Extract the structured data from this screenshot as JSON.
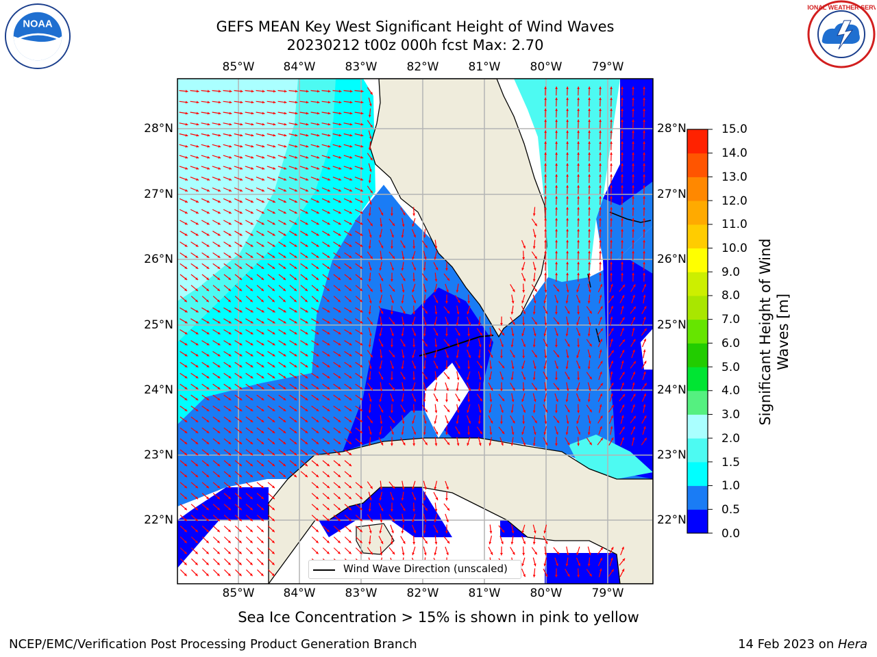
{
  "title_line1": "GEFS MEAN Key West Significant Height of Wind Waves",
  "title_line2": "20230212 t00z 000h fcst   Max: 2.70",
  "logos": {
    "left": "noaa-logo",
    "right": "national-weather-service-logo",
    "left_text": "NOAA",
    "right_text": "NATIONAL WEATHER SERVICE"
  },
  "map": {
    "lon_ticks": [
      "85°W",
      "84°W",
      "83°W",
      "82°W",
      "81°W",
      "80°W",
      "79°W"
    ],
    "lat_ticks": [
      "28°N",
      "27°N",
      "26°N",
      "25°N",
      "24°N",
      "23°N",
      "22°N"
    ],
    "extent": {
      "lon": [
        -86.0,
        -78.3
      ],
      "lat": [
        21.05,
        28.75
      ]
    },
    "land_color": "#efecdc",
    "arrow_color": "#ff0000"
  },
  "legend": {
    "label": "Wind Wave Direction (unscaled)"
  },
  "colorbar": {
    "label_line1": "Significant Height of Wind",
    "label_line2": "Waves [m]",
    "ticks": [
      "15.0",
      "14.0",
      "13.0",
      "12.0",
      "11.0",
      "10.0",
      "9.0",
      "8.0",
      "7.0",
      "6.0",
      "5.0",
      "4.0",
      "3.0",
      "2.0",
      "1.5",
      "1.0",
      "0.5",
      "0.0"
    ],
    "bins": [
      {
        "from": 0.0,
        "to": 0.5,
        "color": "#0000ff"
      },
      {
        "from": 0.5,
        "to": 1.0,
        "color": "#1a7cf5"
      },
      {
        "from": 1.0,
        "to": 1.5,
        "color": "#00ffff"
      },
      {
        "from": 1.5,
        "to": 2.0,
        "color": "#4dfaf2"
      },
      {
        "from": 2.0,
        "to": 3.0,
        "color": "#aaffff"
      },
      {
        "from": 3.0,
        "to": 4.0,
        "color": "#55f080"
      },
      {
        "from": 4.0,
        "to": 5.0,
        "color": "#00e533"
      },
      {
        "from": 5.0,
        "to": 6.0,
        "color": "#22cc00"
      },
      {
        "from": 6.0,
        "to": 7.0,
        "color": "#66e500"
      },
      {
        "from": 7.0,
        "to": 8.0,
        "color": "#a9e600"
      },
      {
        "from": 8.0,
        "to": 9.0,
        "color": "#ccef00"
      },
      {
        "from": 9.0,
        "to": 10.0,
        "color": "#ffff00"
      },
      {
        "from": 10.0,
        "to": 11.0,
        "color": "#ffcc00"
      },
      {
        "from": 11.0,
        "to": 12.0,
        "color": "#ffaa00"
      },
      {
        "from": 12.0,
        "to": 13.0,
        "color": "#ff8800"
      },
      {
        "from": 13.0,
        "to": 14.0,
        "color": "#ff5500"
      },
      {
        "from": 14.0,
        "to": 15.0,
        "color": "#ff2200"
      }
    ]
  },
  "note": "Sea Ice Concentration > 15% is shown in pink to yellow",
  "footer_left": "NCEP/EMC/Verification Post Processing Product Generation Branch",
  "footer_right_date": "14 Feb 2023 on ",
  "footer_right_host": "Hera"
}
